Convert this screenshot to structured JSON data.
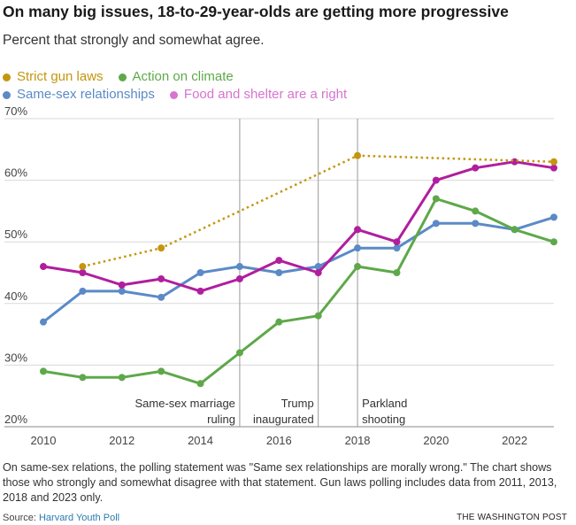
{
  "header": {
    "title": "On many big issues, 18-to-29-year-olds are getting more progressive",
    "subtitle": "Percent that strongly and somewhat agree."
  },
  "legend": [
    {
      "label": "Strict gun laws",
      "color": "#c4960f"
    },
    {
      "label": "Action on climate",
      "color": "#5ea84a"
    },
    {
      "label": "Same-sex relationships",
      "color": "#5b8ac6"
    },
    {
      "label": "Food and shelter are a right",
      "color": "#d674cf"
    }
  ],
  "chart_data": {
    "type": "line",
    "title": "On many big issues, 18-to-29-year-olds are getting more progressive",
    "subtitle": "Percent that strongly and somewhat agree.",
    "xlim": [
      2010,
      2023
    ],
    "ylim": [
      20,
      70
    ],
    "x_ticks": [
      "2010",
      "2012",
      "2014",
      "2016",
      "2018",
      "2020",
      "2022"
    ],
    "y_ticks": [
      "20%",
      "30%",
      "40%",
      "50%",
      "60%",
      "70%"
    ],
    "grid": "horizontal",
    "legend_position": "top-left",
    "series": [
      {
        "name": "Strict gun laws",
        "color": "#c4960f",
        "style": "dotted",
        "points": [
          [
            2011,
            46
          ],
          [
            2013,
            49
          ],
          [
            2018,
            64
          ],
          [
            2023,
            63
          ]
        ]
      },
      {
        "name": "Action on climate",
        "color": "#5ea84a",
        "style": "solid",
        "points": [
          [
            2010,
            29
          ],
          [
            2011,
            28
          ],
          [
            2012,
            28
          ],
          [
            2013,
            29
          ],
          [
            2014,
            27
          ],
          [
            2015,
            32
          ],
          [
            2016,
            37
          ],
          [
            2017,
            38
          ],
          [
            2018,
            46
          ],
          [
            2019,
            45
          ],
          [
            2020,
            57
          ],
          [
            2021,
            55
          ],
          [
            2022,
            52
          ],
          [
            2023,
            50
          ]
        ]
      },
      {
        "name": "Same-sex relationships",
        "color": "#5b8ac6",
        "style": "solid",
        "points": [
          [
            2010,
            37
          ],
          [
            2011,
            42
          ],
          [
            2012,
            42
          ],
          [
            2013,
            41
          ],
          [
            2014,
            45
          ],
          [
            2015,
            46
          ],
          [
            2016,
            45
          ],
          [
            2017,
            46
          ],
          [
            2018,
            49
          ],
          [
            2019,
            49
          ],
          [
            2020,
            53
          ],
          [
            2021,
            53
          ],
          [
            2022,
            52
          ],
          [
            2023,
            54
          ]
        ]
      },
      {
        "name": "Food and shelter are a right",
        "color": "#b01e9e",
        "style": "solid",
        "points": [
          [
            2010,
            46
          ],
          [
            2011,
            45
          ],
          [
            2012,
            43
          ],
          [
            2013,
            44
          ],
          [
            2014,
            42
          ],
          [
            2015,
            44
          ],
          [
            2016,
            47
          ],
          [
            2017,
            45
          ],
          [
            2018,
            52
          ],
          [
            2019,
            50
          ],
          [
            2020,
            60
          ],
          [
            2021,
            62
          ],
          [
            2022,
            63
          ],
          [
            2023,
            62
          ]
        ]
      }
    ],
    "annotations": [
      {
        "x": 2015,
        "lines": [
          "Same-sex marriage",
          "ruling"
        ],
        "align": "end"
      },
      {
        "x": 2017,
        "lines": [
          "Trump",
          "inaugurated"
        ],
        "align": "end"
      },
      {
        "x": 2018,
        "lines": [
          "Parkland",
          "shooting"
        ],
        "align": "start"
      }
    ]
  },
  "footer": {
    "note": "On same-sex relations, the polling statement was \"Same sex relationships are morally wrong.\" The chart shows those who strongly and somewhat disagree with that statement. Gun laws polling includes data from 2011, 2013, 2018 and 2023 only.",
    "source_prefix": "Source: ",
    "source_link": "Harvard Youth Poll",
    "credit": "THE WASHINGTON POST"
  }
}
